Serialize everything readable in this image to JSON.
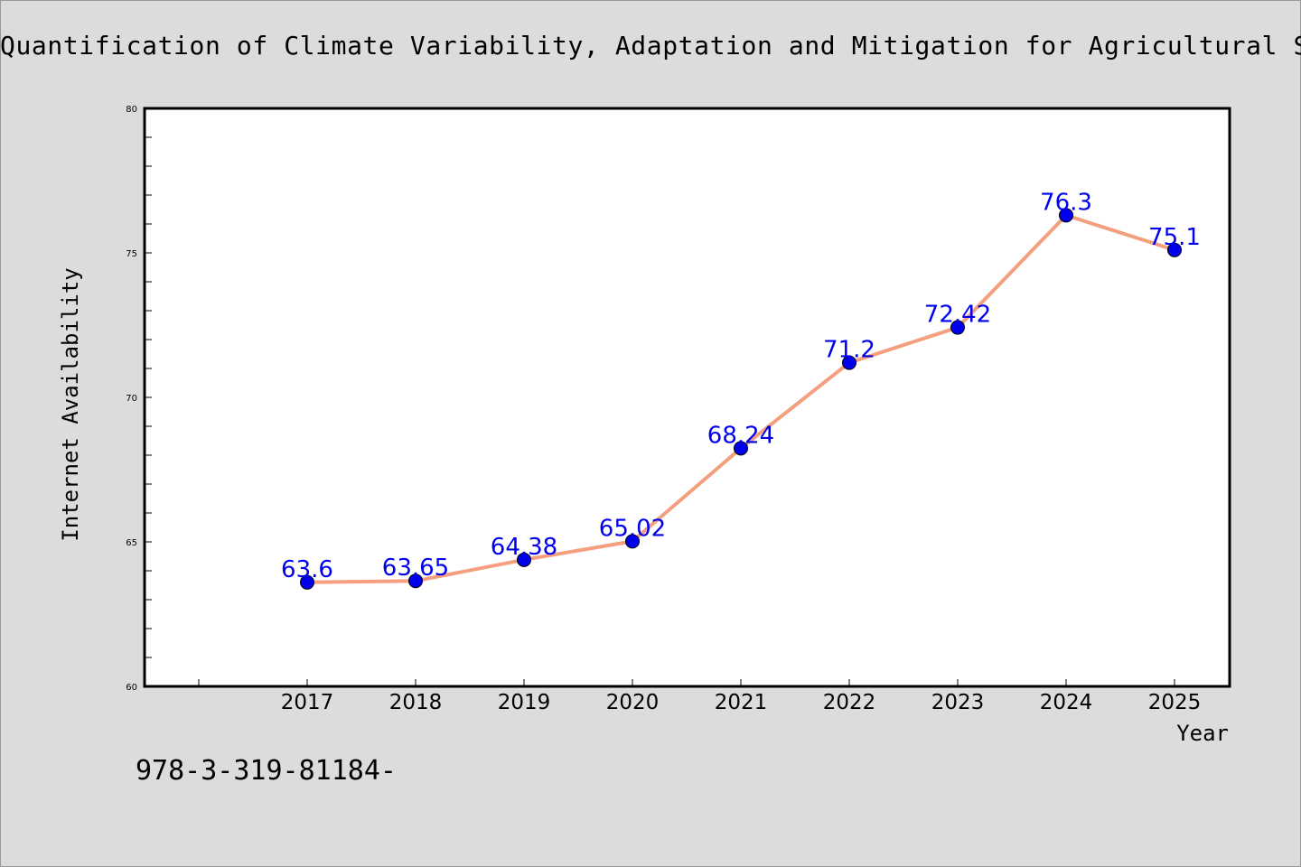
{
  "chart_data": {
    "type": "line",
    "title": "Quantification of Climate Variability, Adaptation and Mitigation for Agricultural Sustainability",
    "xlabel": "Year",
    "ylabel": "Internet Availability",
    "categories": [
      "2017",
      "2018",
      "2019",
      "2020",
      "2021",
      "2022",
      "2023",
      "2024",
      "2025"
    ],
    "series": [
      {
        "values": [
          63.6,
          63.65,
          64.38,
          65.02,
          68.24,
          71.2,
          72.42,
          76.3,
          75.1
        ],
        "labels": [
          "63.6",
          "63.65",
          "64.38",
          "65.02",
          "68.24",
          "71.2",
          "72.42",
          "76.3",
          "75.1"
        ]
      }
    ],
    "ylim": [
      60,
      80
    ],
    "yticks": [
      60,
      65,
      70,
      75,
      80
    ],
    "grid": false,
    "line_color": "#f4a07e",
    "marker_color": "#0000ee",
    "label_color": "#0000ee",
    "background_color": "#dcdcdc",
    "plot_background": "#ffffff"
  },
  "footer": {
    "isbn": "978-3-319-81184-"
  }
}
